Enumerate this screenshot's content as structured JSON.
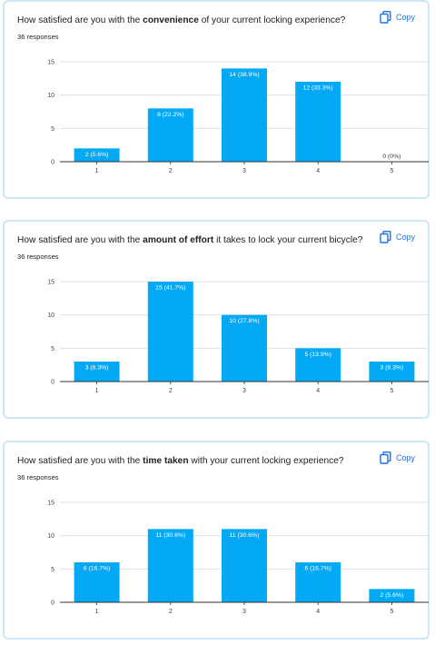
{
  "copy_label": "Copy",
  "colors": {
    "bar": "#03a9f4",
    "grid": "#e0e0e0",
    "axis": "#333333",
    "accent": "#1a73e8"
  },
  "cards": [
    {
      "title_pre": "How satisfied are you with the ",
      "title_bold": "convenience",
      "title_post": " of your current locking experience?",
      "responses": "36 responses"
    },
    {
      "title_pre": "How satisfied are you with the ",
      "title_bold": "amount of effort",
      "title_post": " it takes to lock your current bicycle?",
      "responses": "36 responses"
    },
    {
      "title_pre": "How satisfied are you with the ",
      "title_bold": "time taken",
      "title_post": " with your current locking experience?",
      "responses": "36 responses"
    }
  ],
  "chart_data": [
    {
      "type": "bar",
      "categories": [
        "1",
        "2",
        "3",
        "4",
        "5"
      ],
      "values": [
        2,
        8,
        14,
        12,
        0
      ],
      "labels": [
        "2 (5.6%)",
        "8 (22.2%)",
        "14 (38.9%)",
        "12 (33.3%)",
        "0 (0%)"
      ],
      "yticks": [
        "0",
        "5",
        "10",
        "15"
      ],
      "ylim": [
        0,
        15
      ],
      "grid": true
    },
    {
      "type": "bar",
      "categories": [
        "1",
        "2",
        "3",
        "4",
        "5"
      ],
      "values": [
        3,
        15,
        10,
        5,
        3
      ],
      "labels": [
        "3 (8.3%)",
        "15 (41.7%)",
        "10 (27.8%)",
        "5 (13.9%)",
        "3 (8.3%)"
      ],
      "yticks": [
        "0",
        "5",
        "10",
        "15"
      ],
      "ylim": [
        0,
        15
      ],
      "grid": true
    },
    {
      "type": "bar",
      "categories": [
        "1",
        "2",
        "3",
        "4",
        "5"
      ],
      "values": [
        6,
        11,
        11,
        6,
        2
      ],
      "labels": [
        "6 (16.7%)",
        "11 (30.6%)",
        "11 (30.6%)",
        "6 (16.7%)",
        "2 (5.6%)"
      ],
      "yticks": [
        "0",
        "5",
        "10",
        "15"
      ],
      "ylim": [
        0,
        15
      ],
      "grid": true
    }
  ]
}
